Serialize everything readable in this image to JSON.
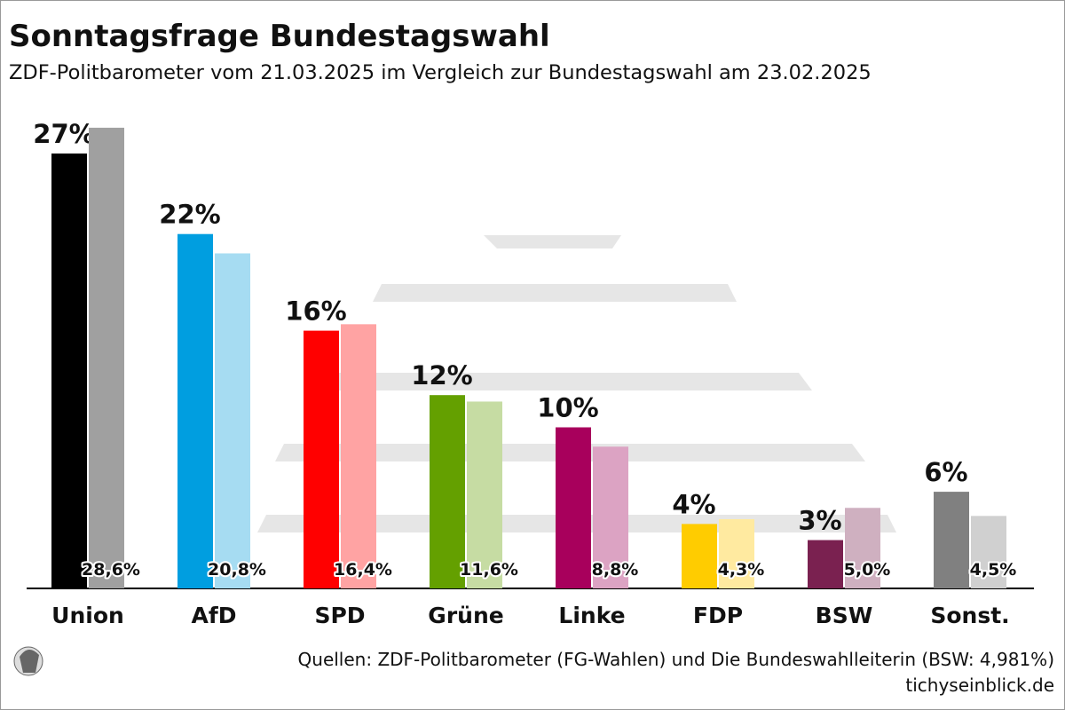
{
  "chart_data": {
    "type": "bar",
    "title": "Sonntagsfrage Bundestagswahl",
    "subtitle": "ZDF-Politbarometer vom 21.03.2025 im Vergleich zur Bundestagswahl am 23.02.2025",
    "categories": [
      "Union",
      "AfD",
      "SPD",
      "Grüne",
      "Linke",
      "FDP",
      "BSW",
      "Sonst."
    ],
    "series": [
      {
        "colors": [
          "#000000",
          "#009ee0",
          "#ff0000",
          "#64a000",
          "#a8005c",
          "#ffcc00",
          "#7a2150",
          "#808080"
        ],
        "values": [
          27,
          22,
          16,
          12,
          10,
          4,
          3,
          6
        ],
        "value_labels": [
          "27%",
          "22%",
          "16%",
          "12%",
          "10%",
          "4%",
          "3%",
          "6%"
        ]
      },
      {
        "colors": [
          "#a0a0a0",
          "#a6dcf2",
          "#ffa3a3",
          "#c6dca3",
          "#dca3c3",
          "#ffeaa0",
          "#cfb0c0",
          "#d0d0d0"
        ],
        "values": [
          28.6,
          20.8,
          16.4,
          11.6,
          8.8,
          4.3,
          5.0,
          4.5
        ],
        "value_labels": [
          "28,6%",
          "20,8%",
          "16,4%",
          "11,6%",
          "8,8%",
          "4,3%",
          "5,0%",
          "4,5%"
        ]
      }
    ],
    "source": "Quellen: ZDF-Politbarometer (FG-Wahlen) und Die Bundeswahlleiterin (BSW: 4,981%)",
    "credit": "tichyseinblick.de"
  }
}
